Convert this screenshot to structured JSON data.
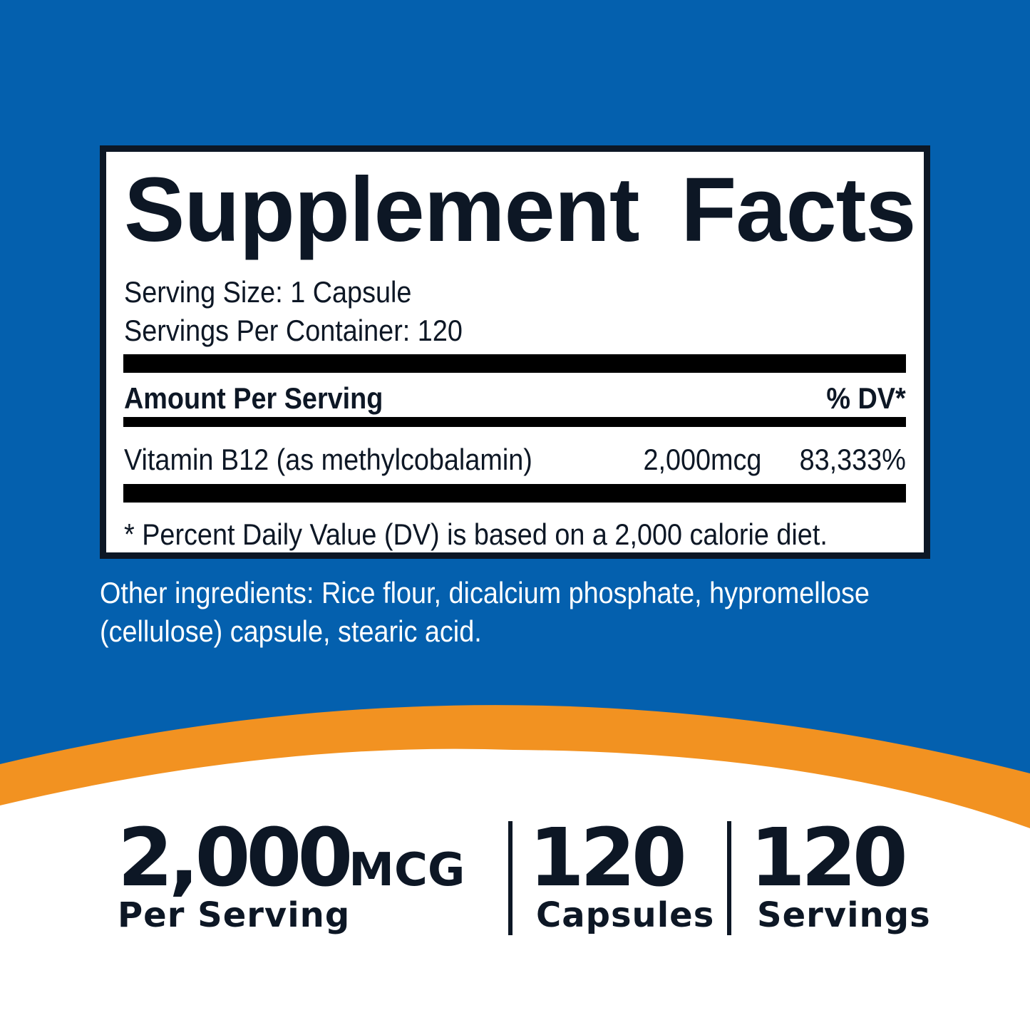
{
  "colors": {
    "background": "#0460ae",
    "accent": "#f29221",
    "text": "#0d1725"
  },
  "facts": {
    "title": "Supplement Facts",
    "serving_size": "Serving Size: 1 Capsule",
    "servings_per_container": "Servings Per Container: 120",
    "amount_header": "Amount Per Serving",
    "dv_header": "% DV*",
    "rows": [
      {
        "name": "Vitamin B12 (as methylcobalamin)",
        "amount": "2,000mcg",
        "dv": "83,333%"
      }
    ],
    "footnote": "* Percent Daily Value (DV) is based on a 2,000 calorie diet."
  },
  "other_ingredients": "Other ingredients: Rice flour, dicalcium phosphate, hypromellose (cellulose) capsule, stearic acid.",
  "stats": [
    {
      "value": "2,000",
      "unit": "MCG",
      "label": "Per Serving"
    },
    {
      "value": "120",
      "label": "Capsules"
    },
    {
      "value": "120",
      "label": "Servings"
    }
  ]
}
